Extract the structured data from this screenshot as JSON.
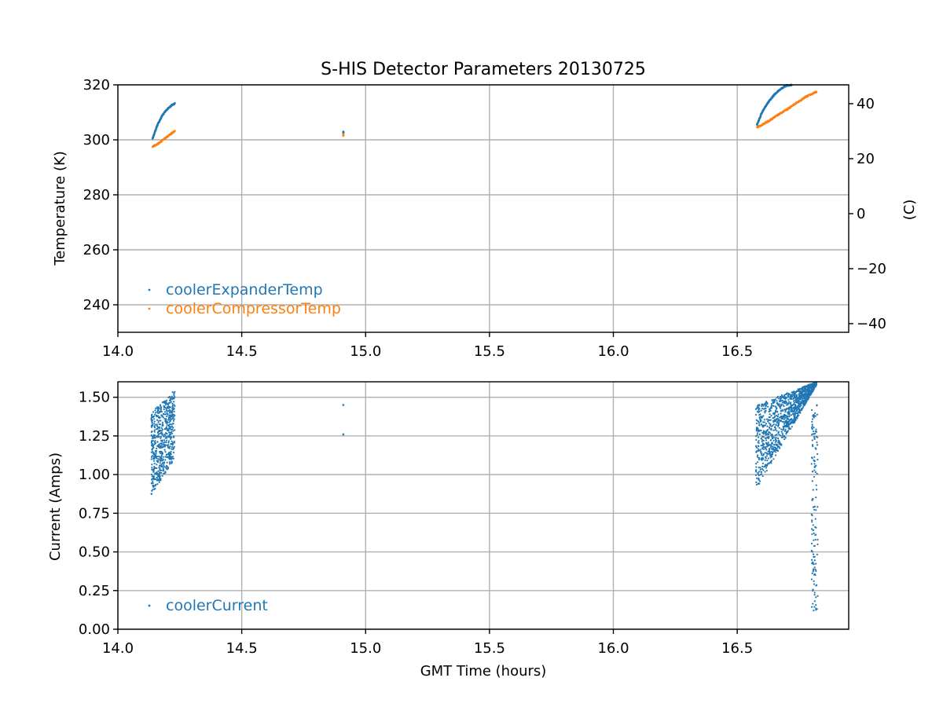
{
  "chart_data": [
    {
      "type": "scatter",
      "title": "S-HIS Detector Parameters 20130725",
      "xlabel": "",
      "ylabel": "Temperature (K)",
      "ylabel_right": "(C)",
      "xlim": [
        14.0,
        16.95
      ],
      "ylim": [
        230,
        320
      ],
      "ylim_right": [
        -43.15,
        46.85
      ],
      "x_ticks": [
        "14.0",
        "14.5",
        "15.0",
        "15.5",
        "16.0",
        "16.5"
      ],
      "y_ticks": [
        "240",
        "260",
        "280",
        "300",
        "320"
      ],
      "y_ticks_right": [
        "−40",
        "−20",
        "0",
        "20",
        "40"
      ],
      "grid": true,
      "legend_position": "lower-left",
      "colors": {
        "cooler_expander": "#1f77b4",
        "cooler_compressor": "#ff7f0e"
      },
      "series": [
        {
          "name": "coolerExpanderTemp",
          "color": "#1f77b4",
          "segments": [
            {
              "x": [
                14.14,
                14.16,
                14.18,
                14.2,
                14.22,
                14.23
              ],
              "y": [
                300.5,
                305.5,
                309.0,
                311.2,
                312.8,
                313.2
              ]
            },
            {
              "x": [
                14.91,
                14.91
              ],
              "y": [
                302.5,
                303.0
              ]
            },
            {
              "x": [
                16.58,
                16.6,
                16.62,
                16.65,
                16.68,
                16.7,
                16.72
              ],
              "y": [
                305.5,
                310.0,
                313.0,
                316.5,
                318.8,
                319.8,
                320.0
              ]
            }
          ]
        },
        {
          "name": "coolerCompressorTemp",
          "color": "#ff7f0e",
          "segments": [
            {
              "x": [
                14.14,
                14.16,
                14.18,
                14.2,
                14.22,
                14.23
              ],
              "y": [
                297.5,
                298.5,
                299.8,
                301.2,
                302.6,
                303.3
              ]
            },
            {
              "x": [
                14.91,
                14.91
              ],
              "y": [
                301.5,
                302.0
              ]
            },
            {
              "x": [
                16.58,
                16.6,
                16.63,
                16.66,
                16.7,
                16.74,
                16.78,
                16.82
              ],
              "y": [
                304.5,
                305.5,
                307.0,
                308.8,
                311.0,
                313.5,
                315.8,
                317.5
              ]
            }
          ]
        }
      ]
    },
    {
      "type": "scatter",
      "title": "",
      "xlabel": "GMT Time (hours)",
      "ylabel": "Current (Amps)",
      "xlim": [
        14.0,
        16.95
      ],
      "ylim": [
        0.0,
        1.6
      ],
      "x_ticks": [
        "14.0",
        "14.5",
        "15.0",
        "15.5",
        "16.0",
        "16.5"
      ],
      "y_ticks": [
        "0.00",
        "0.25",
        "0.50",
        "0.75",
        "1.00",
        "1.25",
        "1.50"
      ],
      "grid": true,
      "legend_position": "lower-left",
      "series": [
        {
          "name": "coolerCurrent",
          "color": "#1f77b4",
          "clusters": [
            {
              "x_range": [
                14.135,
                14.23
              ],
              "y_low": [
                0.87,
                1.1
              ],
              "y_high": [
                1.4,
                1.55
              ],
              "count": 600
            },
            {
              "x_range": [
                16.575,
                16.82
              ],
              "y_low": [
                0.9,
                1.58
              ],
              "y_high": [
                1.45,
                1.6
              ],
              "count": 1200
            },
            {
              "x_range": [
                16.8,
                16.825
              ],
              "y_low": [
                0.12,
                0.12
              ],
              "y_high": [
                1.45,
                1.45
              ],
              "count": 140
            }
          ],
          "points": [
            {
              "x": 14.91,
              "y": 1.45
            },
            {
              "x": 14.91,
              "y": 1.26
            }
          ]
        }
      ]
    }
  ]
}
